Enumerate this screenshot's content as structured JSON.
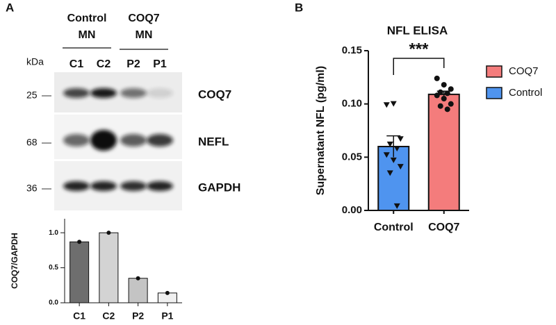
{
  "panel_labels": [
    "A",
    "B"
  ],
  "blot": {
    "groups": [
      {
        "lines": [
          "Control",
          "MN"
        ]
      },
      {
        "lines": [
          "COQ7",
          "MN"
        ]
      }
    ],
    "kda_label": "kDa",
    "lanes": [
      "C1",
      "C2",
      "P2",
      "P1"
    ],
    "rows": [
      {
        "marker": "25",
        "protein": "COQ7"
      },
      {
        "marker": "68",
        "protein": "NEFL"
      },
      {
        "marker": "36",
        "protein": "GAPDH"
      }
    ]
  },
  "chart_data": [
    {
      "type": "bar",
      "ylabel": "COQ7/GAPDH",
      "categories": [
        "C1",
        "C2",
        "P2",
        "P1"
      ],
      "values": [
        0.87,
        1.0,
        0.35,
        0.14
      ],
      "colors": [
        "#6e6e6e",
        "#d3d3d3",
        "#c4c4c4",
        "#f0f0f0"
      ],
      "ylim": [
        0,
        1.2
      ],
      "yticks": [
        {
          "value": 0,
          "label": "0.0"
        },
        {
          "value": 0.5,
          "label": "0.5"
        },
        {
          "value": 1,
          "label": "1.0"
        }
      ]
    },
    {
      "type": "bar",
      "title": "NFL ELISA",
      "ylabel": "Supernatant NFL (pg/ml)",
      "categories": [
        "Control",
        "COQ7"
      ],
      "values": [
        0.06,
        0.109
      ],
      "errors": [
        0.01,
        0.003
      ],
      "colors": [
        "#4f94ef",
        "#f47c7c"
      ],
      "points": [
        [
          0.099,
          0.1,
          0.067,
          0.062,
          0.058,
          0.052,
          0.047,
          0.041,
          0.035,
          0.004
        ],
        [
          0.124,
          0.118,
          0.114,
          0.111,
          0.11,
          0.108,
          0.105,
          0.1,
          0.098,
          0.095
        ]
      ],
      "ylim": [
        0,
        0.15
      ],
      "yticks": [
        {
          "value": 0,
          "label": "0.00"
        },
        {
          "value": 0.05,
          "label": "0.05"
        },
        {
          "value": 0.1,
          "label": "0.10"
        },
        {
          "value": 0.15,
          "label": "0.15"
        }
      ],
      "annotation": "***",
      "legend": [
        {
          "name": "COQ7",
          "color": "#f47c7c"
        },
        {
          "name": "Control",
          "color": "#4f94ef"
        }
      ]
    }
  ]
}
